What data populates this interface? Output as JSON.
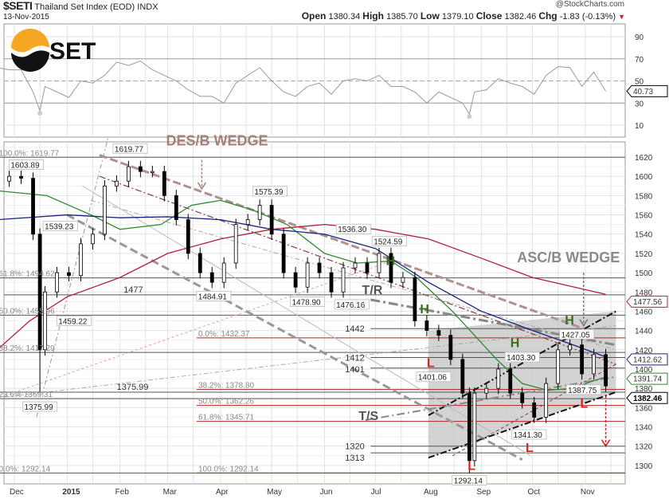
{
  "header": {
    "symbol": "$SETI",
    "name": "Thailand Set Index (EOD)",
    "exchange": "INDX",
    "date": "13-Nov-2015",
    "copyright": "@StockCharts.com",
    "open_label": "Open",
    "open": "1380.34",
    "high_label": "High",
    "high": "1385.70",
    "low_label": "Low",
    "low": "1379.10",
    "close_label": "Close",
    "close": "1382.46",
    "chg_label": "Chg",
    "chg": "-1.83 (-0.13%)",
    "chg_icon": "down-triangle-icon"
  },
  "logo": {
    "text": "SET",
    "colors": [
      "#f5a623",
      "#111111"
    ]
  },
  "chart_data": {
    "type": "candlestick",
    "title": "$SETI Thailand Set Index (EOD)",
    "x_ticks": [
      {
        "label": "Dec",
        "date": "2014-12-01"
      },
      {
        "label": "2015",
        "date": "2015-01-01",
        "bold": true
      },
      {
        "label": "Feb",
        "date": "2015-02-01"
      },
      {
        "label": "Mar",
        "date": "2015-03-01"
      },
      {
        "label": "Apr",
        "date": "2015-04-01"
      },
      {
        "label": "May",
        "date": "2015-05-01"
      },
      {
        "label": "Jun",
        "date": "2015-06-01"
      },
      {
        "label": "Jul",
        "date": "2015-07-01"
      },
      {
        "label": "Aug",
        "date": "2015-08-01"
      },
      {
        "label": "Sep",
        "date": "2015-09-01"
      },
      {
        "label": "Oct",
        "date": "2015-10-01"
      },
      {
        "label": "Nov",
        "date": "2015-11-01"
      }
    ],
    "price_axis": {
      "ylim": [
        1281,
        1636
      ],
      "ticks": [
        1300,
        1320,
        1340,
        1360,
        1380,
        1400,
        1420,
        1440,
        1460,
        1480,
        1500,
        1520,
        1540,
        1560,
        1580,
        1600,
        1620
      ]
    },
    "rsi_axis": {
      "ticks": [
        10,
        30,
        50,
        70,
        90
      ],
      "overbought": 70,
      "oversold": 30,
      "mid": 50
    },
    "series": [
      {
        "d": "2014-11-21",
        "c": 1595,
        "rsi": 62
      },
      {
        "d": "2014-11-28",
        "c": 1600,
        "rsi": 60
      },
      {
        "d": "2014-12-05",
        "c": 1598,
        "rsi": 60
      },
      {
        "d": "2014-12-12",
        "c": 1540,
        "rsi": 40
      },
      {
        "d": "2014-12-16",
        "c": 1420,
        "low": 1376,
        "rsi": 23
      },
      {
        "d": "2014-12-19",
        "c": 1480,
        "rsi": 45
      },
      {
        "d": "2014-12-26",
        "c": 1500,
        "rsi": 40
      },
      {
        "d": "2015-01-02",
        "c": 1497,
        "rsi": 35
      },
      {
        "d": "2015-01-09",
        "c": 1530,
        "rsi": 50
      },
      {
        "d": "2015-01-16",
        "c": 1540,
        "rsi": 48
      },
      {
        "d": "2015-01-23",
        "c": 1590,
        "rsi": 55
      },
      {
        "d": "2015-01-30",
        "c": 1595,
        "rsi": 67
      },
      {
        "d": "2015-02-06",
        "c": 1610,
        "rsi": 64
      },
      {
        "d": "2015-02-13",
        "c": 1605,
        "rsi": 68
      },
      {
        "d": "2015-02-20",
        "c": 1605,
        "rsi": 60
      },
      {
        "d": "2015-02-27",
        "c": 1580,
        "rsi": 55
      },
      {
        "d": "2015-03-06",
        "c": 1555,
        "rsi": 50
      },
      {
        "d": "2015-03-13",
        "c": 1520,
        "rsi": 42
      },
      {
        "d": "2015-03-20",
        "c": 1500,
        "rsi": 36
      },
      {
        "d": "2015-03-27",
        "c": 1490,
        "rsi": 36
      },
      {
        "d": "2015-04-03",
        "c": 1510,
        "rsi": 30
      },
      {
        "d": "2015-04-10",
        "c": 1550,
        "rsi": 48
      },
      {
        "d": "2015-04-17",
        "c": 1555,
        "rsi": 55
      },
      {
        "d": "2015-04-24",
        "c": 1570,
        "rsi": 62
      },
      {
        "d": "2015-05-01",
        "c": 1540,
        "rsi": 50
      },
      {
        "d": "2015-05-08",
        "c": 1500,
        "rsi": 40
      },
      {
        "d": "2015-05-15",
        "c": 1485,
        "rsi": 36
      },
      {
        "d": "2015-05-22",
        "c": 1510,
        "rsi": 45
      },
      {
        "d": "2015-05-29",
        "c": 1500,
        "rsi": 48
      },
      {
        "d": "2015-06-05",
        "c": 1480,
        "rsi": 38
      },
      {
        "d": "2015-06-12",
        "c": 1505,
        "rsi": 50
      },
      {
        "d": "2015-06-19",
        "c": 1510,
        "rsi": 52
      },
      {
        "d": "2015-06-26",
        "c": 1500,
        "rsi": 50
      },
      {
        "d": "2015-07-03",
        "c": 1520,
        "rsi": 55
      },
      {
        "d": "2015-07-10",
        "c": 1490,
        "rsi": 45
      },
      {
        "d": "2015-07-17",
        "c": 1495,
        "rsi": 45
      },
      {
        "d": "2015-07-24",
        "c": 1450,
        "rsi": 40
      },
      {
        "d": "2015-07-31",
        "c": 1440,
        "rsi": 30
      },
      {
        "d": "2015-08-07",
        "c": 1435,
        "rsi": 40
      },
      {
        "d": "2015-08-14",
        "c": 1410,
        "rsi": 35
      },
      {
        "d": "2015-08-21",
        "c": 1375,
        "rsi": 30
      },
      {
        "d": "2015-08-25",
        "c": 1305,
        "low": 1292.14,
        "rsi": 20
      },
      {
        "d": "2015-08-28",
        "c": 1375,
        "rsi": 40
      },
      {
        "d": "2015-09-04",
        "c": 1380,
        "rsi": 42
      },
      {
        "d": "2015-09-11",
        "c": 1400,
        "rsi": 52
      },
      {
        "d": "2015-09-18",
        "c": 1375,
        "rsi": 48
      },
      {
        "d": "2015-09-25",
        "c": 1365,
        "rsi": 45
      },
      {
        "d": "2015-10-02",
        "c": 1350,
        "rsi": 38
      },
      {
        "d": "2015-10-09",
        "c": 1385,
        "rsi": 55
      },
      {
        "d": "2015-10-16",
        "c": 1420,
        "rsi": 63
      },
      {
        "d": "2015-10-23",
        "c": 1425,
        "rsi": 62
      },
      {
        "d": "2015-10-30",
        "c": 1395,
        "rsi": 45
      },
      {
        "d": "2015-11-06",
        "c": 1415,
        "rsi": 58
      },
      {
        "d": "2015-11-13",
        "c": 1382.46,
        "rsi": 40.73
      }
    ],
    "moving_averages": [
      {
        "name": "MA green",
        "color": "#2e8b2e",
        "last": "1391.74",
        "points": [
          [
            "2014-11-21",
            1585
          ],
          [
            "2014-12-20",
            1580
          ],
          [
            "2015-01-15",
            1560
          ],
          [
            "2015-02-01",
            1545
          ],
          [
            "2015-02-25",
            1550
          ],
          [
            "2015-03-15",
            1570
          ],
          [
            "2015-04-01",
            1575
          ],
          [
            "2015-04-20",
            1565
          ],
          [
            "2015-05-10",
            1550
          ],
          [
            "2015-06-01",
            1520
          ],
          [
            "2015-06-20",
            1510
          ],
          [
            "2015-07-10",
            1512
          ],
          [
            "2015-07-25",
            1495
          ],
          [
            "2015-08-15",
            1460
          ],
          [
            "2015-09-10",
            1410
          ],
          [
            "2015-09-25",
            1385
          ],
          [
            "2015-10-10",
            1378
          ],
          [
            "2015-10-25",
            1380
          ],
          [
            "2015-11-06",
            1388
          ],
          [
            "2015-11-13",
            1391.74
          ]
        ]
      },
      {
        "name": "MA blue",
        "color": "#1a237e",
        "last": "1412.62",
        "points": [
          [
            "2014-11-21",
            1555
          ],
          [
            "2015-01-01",
            1560
          ],
          [
            "2015-02-01",
            1557
          ],
          [
            "2015-03-01",
            1558
          ],
          [
            "2015-04-01",
            1555
          ],
          [
            "2015-05-01",
            1545
          ],
          [
            "2015-06-01",
            1540
          ],
          [
            "2015-07-01",
            1525
          ],
          [
            "2015-08-01",
            1490
          ],
          [
            "2015-09-01",
            1460
          ],
          [
            "2015-10-01",
            1440
          ],
          [
            "2015-10-25",
            1425
          ],
          [
            "2015-11-13",
            1412.62
          ]
        ]
      },
      {
        "name": "MA red",
        "color": "#b0203a",
        "last": "1477.56",
        "points": [
          [
            "2014-11-21",
            1420
          ],
          [
            "2014-12-10",
            1450
          ],
          [
            "2015-01-01",
            1475
          ],
          [
            "2015-02-01",
            1495
          ],
          [
            "2015-03-01",
            1520
          ],
          [
            "2015-04-01",
            1535
          ],
          [
            "2015-05-01",
            1545
          ],
          [
            "2015-06-01",
            1550
          ],
          [
            "2015-07-01",
            1545
          ],
          [
            "2015-08-01",
            1535
          ],
          [
            "2015-09-01",
            1515
          ],
          [
            "2015-10-01",
            1495
          ],
          [
            "2015-11-13",
            1477.56
          ]
        ]
      }
    ],
    "last_price_tag": "1382.46",
    "rsi_last_tag": "40.73",
    "horizontal_levels": [
      {
        "price": 1619.77,
        "from": "2014-11-21",
        "label": "100.0%: 1619.77",
        "color": "#555",
        "fib": true
      },
      {
        "price": 1494.62,
        "from": "2014-11-21",
        "label": "61.8%: 1494.62",
        "color": "#555",
        "fib": true
      },
      {
        "price": 1477,
        "from": "2014-11-25",
        "label": "1477",
        "color": "#555"
      },
      {
        "price": 1455.96,
        "from": "2014-11-21",
        "label": "50.0%: 1455.96",
        "color": "#555",
        "fib": true
      },
      {
        "price": 1442,
        "from": "2015-06-28",
        "label": "1442",
        "color": "#555"
      },
      {
        "price": 1432.37,
        "from": "2015-03-18",
        "label": "0.0%: 1432.37",
        "color": "#b22222",
        "fib": true
      },
      {
        "price": 1417.29,
        "from": "2014-11-21",
        "label": "38.2%: 1417.29",
        "color": "#555",
        "fib": true
      },
      {
        "price": 1412,
        "from": "2015-06-28",
        "label": "1412",
        "color": "#555"
      },
      {
        "price": 1401,
        "from": "2015-06-28",
        "label": "1401",
        "color": "#555"
      },
      {
        "price": 1378.8,
        "from": "2015-03-18",
        "label": "38.2%: 1378.80",
        "color": "#b22222",
        "fib": true
      },
      {
        "price": 1375.99,
        "from": "2014-11-21",
        "label": "1375.99",
        "color": "#555"
      },
      {
        "price": 1369.31,
        "from": "2014-11-21",
        "label": "23.6% 1369.31",
        "color": "#555",
        "fib": true
      },
      {
        "price": 1362.26,
        "from": "2015-03-18",
        "label": "50.0%: 1362.26",
        "color": "#b22222",
        "fib": true
      },
      {
        "price": 1345.71,
        "from": "2015-03-18",
        "label": "61.8%: 1345.71",
        "color": "#b22222",
        "fib": true
      },
      {
        "price": 1320,
        "from": "2015-06-28",
        "label": "1320",
        "color": "#555"
      },
      {
        "price": 1313,
        "from": "2015-06-28",
        "label": "1313",
        "color": "#555"
      },
      {
        "price": 1292.14,
        "from": "2014-11-21",
        "label": "0.0%: 1292.14",
        "color": "#555",
        "fib": true
      },
      {
        "price": 1292.14,
        "from": "2015-03-18",
        "label": "100.0%: 1292.14",
        "color": "#b22222",
        "fib": true
      }
    ],
    "price_labels": [
      {
        "d": "2014-12-08",
        "p": 1603.89,
        "text": "1603.89",
        "pos": "above"
      },
      {
        "d": "2015-02-07",
        "p": 1619.77,
        "text": "1619.77",
        "pos": "above"
      },
      {
        "d": "2014-12-28",
        "p": 1539.23,
        "text": "1539.23",
        "pos": "above"
      },
      {
        "d": "2015-01-05",
        "p": 1459.22,
        "text": "1459.22",
        "pos": "below"
      },
      {
        "d": "2015-04-30",
        "p": 1575.39,
        "text": "1575.39",
        "pos": "above"
      },
      {
        "d": "2015-03-28",
        "p": 1484.91,
        "text": "1484.91",
        "pos": "below"
      },
      {
        "d": "2015-06-18",
        "p": 1536.3,
        "text": "1536.30",
        "pos": "above"
      },
      {
        "d": "2015-05-22",
        "p": 1478.9,
        "text": "1478.90",
        "pos": "below"
      },
      {
        "d": "2015-06-17",
        "p": 1476.16,
        "text": "1476.16",
        "pos": "below"
      },
      {
        "d": "2015-07-09",
        "p": 1524.59,
        "text": "1524.59",
        "pos": "above"
      },
      {
        "d": "2015-08-04",
        "p": 1401.06,
        "text": "1401.06",
        "pos": "below"
      },
      {
        "d": "2015-09-25",
        "p": 1403.3,
        "text": "1403.30",
        "pos": "above"
      },
      {
        "d": "2015-10-27",
        "p": 1427.05,
        "text": "1427.05",
        "pos": "above"
      },
      {
        "d": "2015-10-31",
        "p": 1387.75,
        "text": "1387.75",
        "pos": "below"
      },
      {
        "d": "2015-09-29",
        "p": 1341.3,
        "text": "1341.30",
        "pos": "below"
      },
      {
        "d": "2015-08-25",
        "p": 1292.14,
        "text": "1292.14",
        "pos": "below"
      },
      {
        "d": "2014-12-16",
        "p": 1375.99,
        "text": "1375.99",
        "pos": "below"
      }
    ],
    "annotations": [
      {
        "text": "DES/B WEDGE",
        "d": "2015-02-28",
        "p": 1632,
        "color": "#a87f7a",
        "size": "big"
      },
      {
        "text": "ASC/B WEDGE",
        "d": "2015-09-22",
        "p": 1511,
        "color": "#8a8a8a",
        "size": "big"
      },
      {
        "text": "T/R",
        "d": "2015-06-23",
        "p": 1461,
        "color": "#555",
        "size": "mid"
      },
      {
        "text": "T/S",
        "d": "2015-06-21",
        "p": 1347,
        "color": "#555",
        "size": "mid"
      },
      {
        "text": "H",
        "d": "2015-07-07",
        "p": 1508,
        "color": "#3a6e1a",
        "size": "mid"
      },
      {
        "text": "H",
        "d": "2015-07-27",
        "p": 1458,
        "color": "#3a6e1a",
        "size": "mid"
      },
      {
        "text": "H",
        "d": "2015-09-18",
        "p": 1412,
        "color": "#3a6e1a",
        "size": "mid"
      },
      {
        "text": "H",
        "d": "2015-10-20",
        "p": 1444,
        "color": "#3a6e1a",
        "size": "mid"
      },
      {
        "text": "L",
        "d": "2015-07-31",
        "p": 1392,
        "color": "#e0201a",
        "size": "mid"
      },
      {
        "text": "L",
        "d": "2015-08-24",
        "p": 1282,
        "color": "#e0201a",
        "size": "mid"
      },
      {
        "text": "L",
        "d": "2015-09-27",
        "p": 1318,
        "color": "#e0201a",
        "size": "mid"
      },
      {
        "text": "L",
        "d": "2015-10-29",
        "p": 1370,
        "color": "#e0201a",
        "size": "mid"
      }
    ],
    "arrows": [
      {
        "d": "2015-03-21",
        "from": 1617,
        "to": 1587,
        "color": "#a87f7a"
      },
      {
        "d": "2015-10-31",
        "from": 1500,
        "to": 1445,
        "color": "#777"
      },
      {
        "d": "2015-11-13",
        "from": 1372,
        "to": 1320,
        "color": "#d0201a"
      }
    ],
    "trendlines": [
      {
        "from": [
          "2015-01-20",
          1622
        ],
        "to": [
          "2015-11-03",
          1440
        ],
        "color": "#b09090",
        "w": 3,
        "dash": "10,4"
      },
      {
        "from": [
          "2015-01-20",
          1600
        ],
        "to": [
          "2015-11-19",
          1405
        ],
        "color": "#8b3a3a",
        "w": 1.2,
        "dash": "8,3,2,3"
      },
      {
        "from": [
          "2015-01-15",
          1575
        ],
        "to": [
          "2015-11-19",
          1420
        ],
        "color": "#aaa",
        "w": 1,
        "dash": "6,3,2,3"
      },
      {
        "from": [
          "2015-01-01",
          1560
        ],
        "to": [
          "2015-09-25",
          1306
        ],
        "color": "#999",
        "w": 3,
        "dash": "10,5"
      },
      {
        "from": [
          "2015-06-28",
          1472
        ],
        "to": [
          "2015-11-19",
          1425
        ],
        "color": "#888",
        "w": 3,
        "dash": "12,4,3,4"
      },
      {
        "from": [
          "2015-08-01",
          1352
        ],
        "to": [
          "2015-11-19",
          1460
        ],
        "color": "#111",
        "w": 2,
        "dash": "8,3,2,3"
      },
      {
        "from": [
          "2015-08-01",
          1308
        ],
        "to": [
          "2015-11-19",
          1376
        ],
        "color": "#111",
        "w": 2,
        "dash": "8,3,2,3"
      },
      {
        "from": [
          "2015-06-25",
          1347
        ],
        "to": [
          "2015-11-19",
          1392
        ],
        "color": "#888",
        "w": 2,
        "dash": "10,4,2,4"
      },
      {
        "from": [
          "2014-11-20",
          1369
        ],
        "to": [
          "2015-07-10",
          1512
        ],
        "color": "#e99",
        "w": 1,
        "dash": "3,3"
      },
      {
        "from": [
          "2014-11-25",
          1371
        ],
        "to": [
          "2015-11-19",
          1445
        ],
        "color": "#aaa",
        "w": 1,
        "dash": "6,3,2,3"
      },
      {
        "from": [
          "2014-12-14",
          1350
        ],
        "to": [
          "2015-01-25",
          1640
        ],
        "color": "#999",
        "w": 1,
        "dash": "6,3,2,3"
      },
      {
        "from": [
          "2015-08-15",
          1310
        ],
        "to": [
          "2015-11-19",
          1405
        ],
        "color": "#8b3a3a",
        "w": 1,
        "dash": "4,3"
      },
      {
        "from": [
          "2015-01-10",
          1590
        ],
        "to": [
          "2015-09-30",
          1310
        ],
        "color": "#bbb",
        "w": 1,
        "dash": ""
      }
    ],
    "channel_fill": {
      "color": "#c8c8c8",
      "points": [
        [
          "2015-08-01",
          1440
        ],
        [
          "2015-11-19",
          1460
        ],
        [
          "2015-11-19",
          1376
        ],
        [
          "2015-08-01",
          1308
        ]
      ]
    }
  }
}
